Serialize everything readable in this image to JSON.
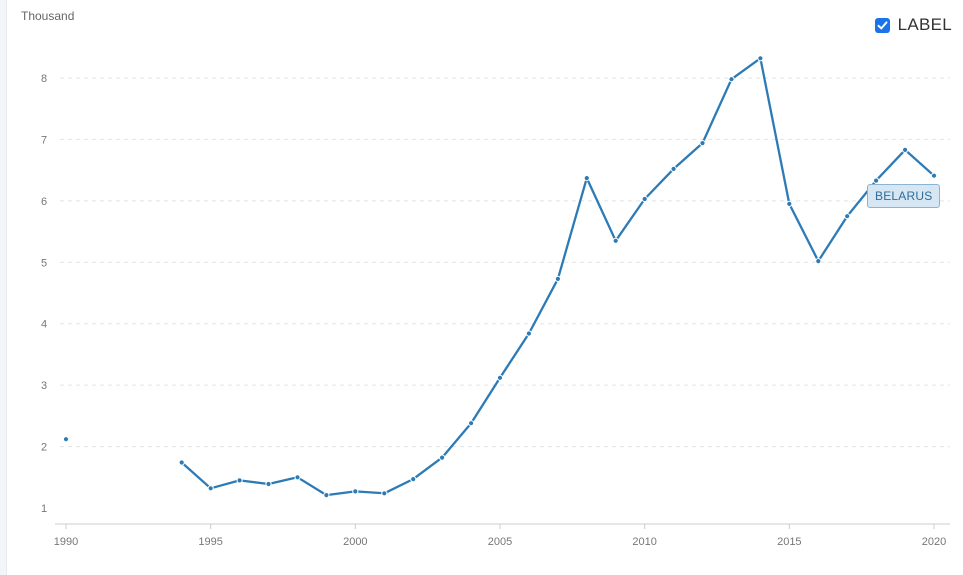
{
  "header": {
    "unit_label": "Thousand"
  },
  "legend": {
    "checkbox_checked": true,
    "label": "LABEL"
  },
  "colors": {
    "series": "#2c7bb6",
    "grid": "#e3e3e3",
    "checkbox": "#1a73e8",
    "tag_bg": "#d6e6f2",
    "tag_text": "#2f6d9b"
  },
  "chart_data": {
    "type": "line",
    "title": "",
    "xlabel": "",
    "ylabel": "Thousand",
    "xlim": [
      1990,
      2020
    ],
    "ylim": [
      1,
      8.5
    ],
    "x_ticks": [
      "1990",
      "1995",
      "2000",
      "2005",
      "2010",
      "2015",
      "2020"
    ],
    "y_ticks": [
      "1",
      "2",
      "3",
      "4",
      "5",
      "6",
      "7",
      "8"
    ],
    "grid": true,
    "series": [
      {
        "name": "BELARUS",
        "color": "#2c7bb6",
        "points": [
          [
            1990,
            2.12
          ],
          [
            1991,
            null
          ],
          [
            1992,
            null
          ],
          [
            1993,
            null
          ],
          [
            1994,
            1.74
          ],
          [
            1995,
            1.32
          ],
          [
            1996,
            1.45
          ],
          [
            1997,
            1.39
          ],
          [
            1998,
            1.5
          ],
          [
            1999,
            1.21
          ],
          [
            2000,
            1.27
          ],
          [
            2001,
            1.24
          ],
          [
            2002,
            1.47
          ],
          [
            2003,
            1.82
          ],
          [
            2004,
            2.38
          ],
          [
            2005,
            3.12
          ],
          [
            2006,
            3.84
          ],
          [
            2007,
            4.73
          ],
          [
            2008,
            6.37
          ],
          [
            2009,
            5.35
          ],
          [
            2010,
            6.03
          ],
          [
            2011,
            6.52
          ],
          [
            2012,
            6.94
          ],
          [
            2013,
            7.98
          ],
          [
            2014,
            8.32
          ],
          [
            2015,
            5.95
          ],
          [
            2016,
            5.02
          ],
          [
            2017,
            5.75
          ],
          [
            2018,
            6.33
          ],
          [
            2019,
            6.83
          ],
          [
            2020,
            6.41
          ]
        ]
      }
    ]
  }
}
